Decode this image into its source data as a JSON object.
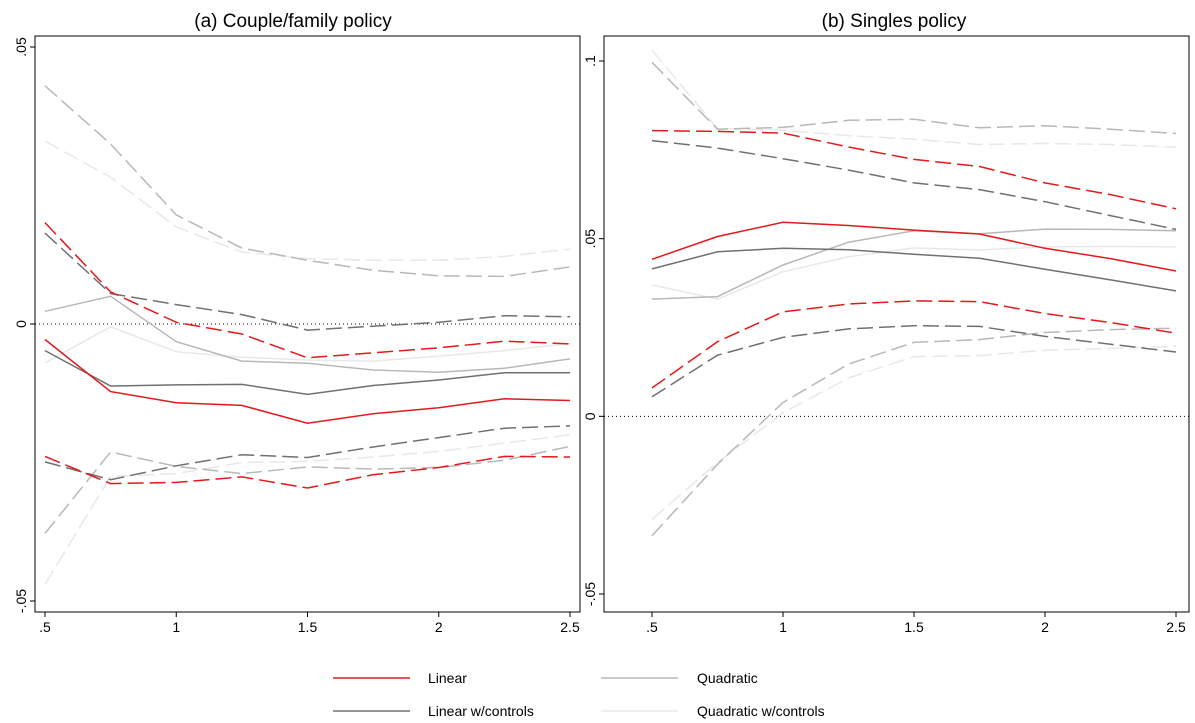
{
  "chart_data": [
    {
      "type": "line",
      "title": "(a) Couple/family policy",
      "x": [
        0.5,
        0.75,
        1,
        1.25,
        1.5,
        1.75,
        2,
        2.25,
        2.5
      ],
      "xticks": [
        0.5,
        1,
        1.5,
        2,
        2.5
      ],
      "xtick_labels": [
        ".5",
        "1",
        "1.5",
        "2",
        "2.5"
      ],
      "yticks": [
        -0.05,
        0,
        0.05
      ],
      "ytick_labels": [
        "-.05",
        "0",
        ".05"
      ],
      "xlim": [
        0.5,
        2.5
      ],
      "ylim": [
        -0.05,
        0.05
      ],
      "reference_line": 0,
      "series": [
        {
          "style": "linear",
          "estimate": [
            -0.0028,
            -0.0122,
            -0.0142,
            -0.0147,
            -0.0179,
            -0.0162,
            -0.0151,
            -0.0135,
            -0.0138
          ],
          "ci_upper": [
            0.0183,
            0.0058,
            0.0003,
            -0.0018,
            -0.0061,
            -0.0052,
            -0.0043,
            -0.0031,
            -0.0036
          ],
          "ci_lower": [
            -0.0239,
            -0.0288,
            -0.0286,
            -0.0276,
            -0.0296,
            -0.0272,
            -0.0259,
            -0.0239,
            -0.024
          ]
        },
        {
          "style": "linear_controls",
          "estimate": [
            -0.0048,
            -0.0112,
            -0.011,
            -0.0109,
            -0.0127,
            -0.0111,
            -0.0101,
            -0.0088,
            -0.0088
          ],
          "ci_upper": [
            0.0164,
            0.0055,
            0.0035,
            0.0017,
            -0.0011,
            -0.0004,
            0.0003,
            0.0015,
            0.0013
          ],
          "ci_lower": [
            -0.0249,
            -0.0281,
            -0.0256,
            -0.0236,
            -0.0241,
            -0.0222,
            -0.0205,
            -0.0188,
            -0.0184
          ]
        },
        {
          "style": "quadratic",
          "estimate": [
            0.0023,
            0.005,
            -0.0032,
            -0.0067,
            -0.0071,
            -0.0083,
            -0.0087,
            -0.008,
            -0.0063
          ],
          "ci_upper": [
            0.043,
            0.0325,
            0.0197,
            0.0137,
            0.0115,
            0.0097,
            0.0087,
            0.0086,
            0.0103
          ],
          "ci_lower": [
            -0.0378,
            -0.0231,
            -0.0257,
            -0.027,
            -0.0258,
            -0.0262,
            -0.0259,
            -0.0246,
            -0.0221
          ]
        },
        {
          "style": "quadratic_controls",
          "estimate": [
            -0.007,
            -0.0005,
            -0.005,
            -0.006,
            -0.0065,
            -0.0067,
            -0.0058,
            -0.0048,
            -0.0035
          ],
          "ci_upper": [
            0.033,
            0.0265,
            0.0175,
            0.013,
            0.0118,
            0.0115,
            0.0115,
            0.0122,
            0.0135
          ],
          "ci_lower": [
            -0.047,
            -0.0275,
            -0.027,
            -0.025,
            -0.0248,
            -0.024,
            -0.023,
            -0.0215,
            -0.02
          ]
        }
      ]
    },
    {
      "type": "line",
      "title": "(b) Singles policy",
      "x": [
        0.5,
        0.75,
        1,
        1.25,
        1.5,
        1.75,
        2,
        2.25,
        2.5
      ],
      "xticks": [
        0.5,
        1,
        1.5,
        2,
        2.5
      ],
      "xtick_labels": [
        ".5",
        "1",
        "1.5",
        "2",
        "2.5"
      ],
      "yticks": [
        -0.05,
        0,
        0.05,
        0.1
      ],
      "ytick_labels": [
        "-.05",
        "0",
        ".05",
        ".1"
      ],
      "xlim": [
        0.5,
        2.5
      ],
      "ylim": [
        -0.05,
        0.1
      ],
      "reference_line": 0,
      "series": [
        {
          "style": "linear",
          "estimate": [
            0.0442,
            0.0506,
            0.0546,
            0.0537,
            0.0524,
            0.0513,
            0.0473,
            0.0444,
            0.0409
          ],
          "ci_upper": [
            0.0804,
            0.0802,
            0.0797,
            0.0758,
            0.0723,
            0.0703,
            0.0657,
            0.0624,
            0.0584
          ],
          "ci_lower": [
            0.008,
            0.021,
            0.0294,
            0.0316,
            0.0325,
            0.0323,
            0.0289,
            0.0264,
            0.0234
          ]
        },
        {
          "style": "linear_controls",
          "estimate": [
            0.0415,
            0.0463,
            0.0473,
            0.0469,
            0.0456,
            0.0445,
            0.0414,
            0.0384,
            0.0353
          ],
          "ci_upper": [
            0.0776,
            0.0755,
            0.0725,
            0.0693,
            0.0657,
            0.0638,
            0.0604,
            0.0565,
            0.0526
          ],
          "ci_lower": [
            0.0055,
            0.0172,
            0.0222,
            0.0246,
            0.0255,
            0.0253,
            0.0225,
            0.0203,
            0.0181
          ]
        },
        {
          "style": "quadratic",
          "estimate": [
            0.033,
            0.0337,
            0.0426,
            0.049,
            0.0522,
            0.0514,
            0.0527,
            0.0526,
            0.0522
          ],
          "ci_upper": [
            0.0996,
            0.0808,
            0.0813,
            0.0833,
            0.0836,
            0.0812,
            0.0818,
            0.0808,
            0.0796
          ],
          "ci_lower": [
            -0.0336,
            -0.0135,
            0.0039,
            0.0147,
            0.0208,
            0.0216,
            0.0236,
            0.0244,
            0.0248
          ]
        },
        {
          "style": "quadratic_controls",
          "estimate": [
            0.037,
            0.033,
            0.0407,
            0.0449,
            0.0474,
            0.0468,
            0.0477,
            0.0478,
            0.0477
          ],
          "ci_upper": [
            0.103,
            0.081,
            0.0805,
            0.079,
            0.078,
            0.0765,
            0.0768,
            0.0765,
            0.0757
          ],
          "ci_lower": [
            -0.029,
            -0.013,
            0.001,
            0.0108,
            0.0168,
            0.0171,
            0.0186,
            0.0191,
            0.0197
          ]
        }
      ]
    }
  ],
  "legend": {
    "placement": "bottom",
    "items": [
      {
        "key": "linear",
        "label": "Linear",
        "color": "#e3191b"
      },
      {
        "key": "quadratic",
        "label": "Quadratic",
        "color": "#b8b8b8"
      },
      {
        "key": "linear_controls",
        "label": "Linear w/controls",
        "color": "#707070"
      },
      {
        "key": "quadratic_controls",
        "label": "Quadratic w/controls",
        "color": "#e8e8e8"
      }
    ]
  },
  "colors": {
    "linear": "#e3191b",
    "linear_controls": "#707070",
    "quadratic": "#b8b8b8",
    "quadratic_controls": "#e8e8e8"
  }
}
